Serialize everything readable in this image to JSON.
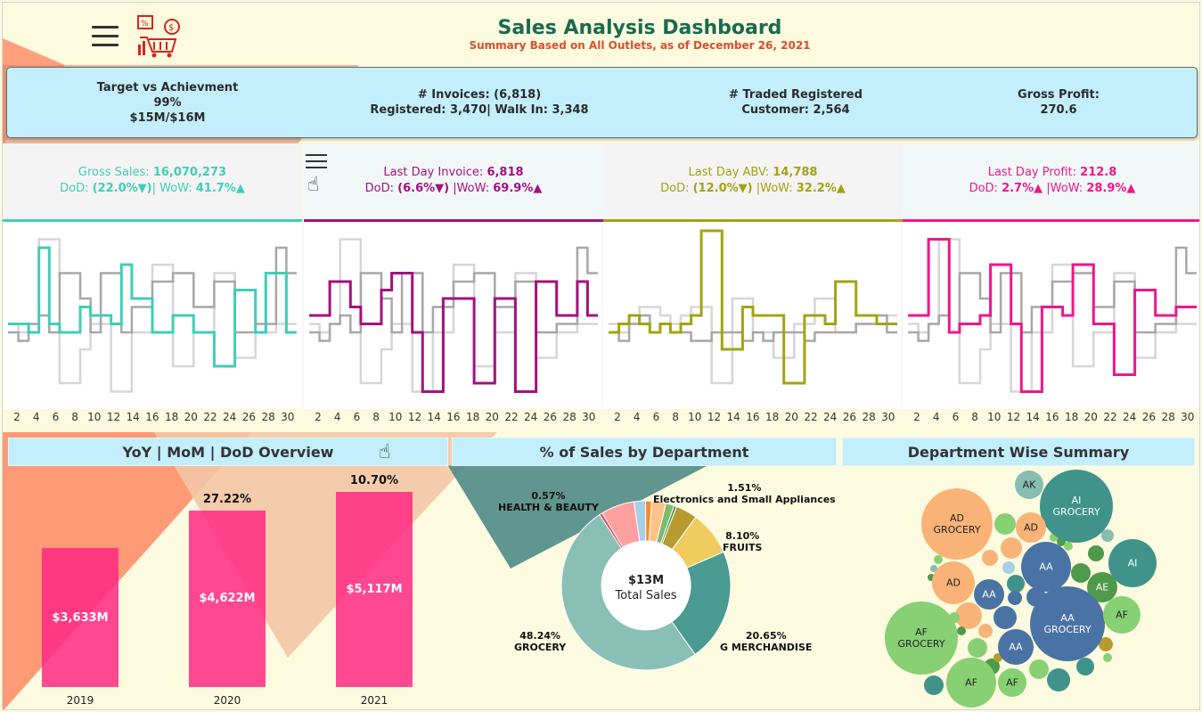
{
  "header": {
    "title": "Sales Analysis Dashboard",
    "subtitle": "Summary Based on All Outlets, as of December 26, 2021",
    "logo_icon": "sales-cart-icon",
    "menu_icon": "hamburger-menu-icon"
  },
  "kpis": [
    {
      "line1": "Target vs Achievment",
      "line2": "99%",
      "line3": "$15M/$16M"
    },
    {
      "line1": "# Invoices: (6,818)",
      "line2": "Registered: 3,470| Walk In: 3,348"
    },
    {
      "line1": "# Traded Registered",
      "line2": "Customer: 2,564"
    },
    {
      "line1": "Gross Profit:",
      "line2": "270.6"
    }
  ],
  "cards": [
    {
      "label": "Gross Sales: ",
      "value": "16,070,273",
      "dod_label": "DoD: ",
      "dod_value": "(22.0%▼)",
      "wow_label": "| WoW:  ",
      "wow_value": "41.7%▲",
      "color": "#3fcdb8"
    },
    {
      "label": "Last Day Invoice: ",
      "value": "6,818",
      "dod_label": "DoD: ",
      "dod_value": "(6.6%▼)",
      "wow_label": " |WoW: ",
      "wow_value": "69.9%▲",
      "color": "#a3117f"
    },
    {
      "label": "Last Day ABV: ",
      "value": "14,788",
      "dod_label": "DoD: ",
      "dod_value": "(12.0%▼)",
      "wow_label": " |WoW: ",
      "wow_value": "32.2%▲",
      "color": "#a3a312"
    },
    {
      "label": "Last Day Profit: ",
      "value": "212.8",
      "dod_label": "DoD: ",
      "dod_value": "2.7%▲",
      "wow_label": " |WoW: ",
      "wow_value": "28.9%▲",
      "color": "#f0168c"
    }
  ],
  "sparkline_axis": [
    "2",
    "4",
    "6",
    "8",
    "10",
    "12",
    "14",
    "16",
    "18",
    "20",
    "22",
    "24",
    "26",
    "28",
    "30"
  ],
  "sections": {
    "yoy": "YoY | MoM | DoD Overview",
    "dept": "% of Sales by Department",
    "summary": "Department Wise Summary"
  },
  "chart_data": [
    {
      "type": "bar",
      "title": "YoY | MoM | DoD Overview",
      "categories": [
        "2019",
        "2020",
        "2021"
      ],
      "values": [
        3633,
        4622,
        5117
      ],
      "value_labels": [
        "$3,633M",
        "$4,622M",
        "$5,117M"
      ],
      "growth_labels": [
        "",
        "27.22%",
        "10.70%"
      ],
      "color": "#ff2b84"
    },
    {
      "type": "pie",
      "title": "% of Sales by Department",
      "center_value": "$13M",
      "center_label": "Total Sales",
      "slices": [
        {
          "name": "G MERCHANDISE",
          "pct": 20.65,
          "label": "20.65%",
          "color": "#4a9b92"
        },
        {
          "name": "GROCERY",
          "pct": 48.24,
          "label": "48.24%",
          "color": "#8abfb6"
        },
        {
          "name": "HEALTH & BEAUTY",
          "pct": 0.57,
          "label": "0.57%",
          "color": "#d9495b"
        },
        {
          "name": "",
          "pct": 6.1,
          "label": "",
          "color": "#ffa0a0"
        },
        {
          "name": "",
          "pct": 2.1,
          "label": "",
          "color": "#a6cfe8"
        },
        {
          "name": "",
          "pct": 1.1,
          "label": "",
          "color": "#f58a2b"
        },
        {
          "name": "",
          "pct": 2.6,
          "label": "",
          "color": "#ffc28a"
        },
        {
          "name": "Electronics and Small Appliances",
          "pct": 1.51,
          "label": "1.51%",
          "color": "#7bbb6a"
        },
        {
          "name": "",
          "pct": 0.5,
          "label": "",
          "color": "#4e9a4b"
        },
        {
          "name": "",
          "pct": 3.9,
          "label": "",
          "color": "#b89a2e"
        },
        {
          "name": "FRUITS",
          "pct": 8.1,
          "label": "8.10%",
          "color": "#efcc5d"
        }
      ]
    },
    {
      "type": "scatter",
      "title": "Department Wise Summary",
      "labels": [
        "AI GROCERY",
        "AD GROCERY",
        "AK",
        "AD",
        "AA",
        "AI",
        "AE",
        "AD",
        "AA",
        "AA GROCERY",
        "AF",
        "AF GROCERY",
        "AA",
        "AF",
        "AF"
      ]
    }
  ],
  "sparklines": [
    {
      "primary": [
        0.55,
        0.55,
        0.6,
        0.1,
        0.55,
        0.6,
        0.6,
        0.45,
        0.5,
        0.5,
        0.55,
        0.2,
        0.4,
        0.4,
        0.6,
        0.6,
        0.5,
        0.5,
        0.6,
        0.6,
        0.8,
        0.8,
        0.35,
        0.35,
        0.6,
        0.25,
        0.25,
        0.6
      ],
      "gray1": [
        0.6,
        0.65,
        0.55,
        0.5,
        0.6,
        0.25,
        0.25,
        0.4,
        0.6,
        0.25,
        0.25,
        0.6,
        0.45,
        0.45,
        0.3,
        0.3,
        0.25,
        0.25,
        0.45,
        0.45,
        0.3,
        0.3,
        0.6,
        0.6,
        0.55,
        0.55,
        0.1,
        0.25
      ],
      "gray2": [
        0.55,
        0.6,
        0.55,
        0.05,
        0.05,
        0.9,
        0.9,
        0.7,
        0.55,
        0.55,
        0.95,
        0.95,
        0.6,
        0.6,
        0.2,
        0.2,
        0.8,
        0.8,
        0.6,
        0.6,
        0.25,
        0.25,
        0.75,
        0.75,
        0.6,
        0.6,
        0.55,
        0.55
      ]
    },
    {
      "primary": [
        0.5,
        0.5,
        0.3,
        0.3,
        0.45,
        0.55,
        0.55,
        0.35,
        0.25,
        0.25,
        0.6,
        0.95,
        0.95,
        0.4,
        0.4,
        0.4,
        0.9,
        0.9,
        0.4,
        0.4,
        0.95,
        0.95,
        0.3,
        0.3,
        0.5,
        0.5,
        0.3,
        0.5
      ],
      "gray1": [
        0.6,
        0.65,
        0.55,
        0.5,
        0.6,
        0.25,
        0.25,
        0.4,
        0.6,
        0.25,
        0.25,
        0.6,
        0.45,
        0.45,
        0.3,
        0.3,
        0.25,
        0.25,
        0.45,
        0.45,
        0.3,
        0.3,
        0.6,
        0.6,
        0.55,
        0.55,
        0.1,
        0.25
      ],
      "gray2": [
        0.55,
        0.6,
        0.55,
        0.05,
        0.05,
        0.9,
        0.9,
        0.7,
        0.55,
        0.55,
        0.95,
        0.95,
        0.6,
        0.6,
        0.2,
        0.2,
        0.8,
        0.8,
        0.6,
        0.6,
        0.25,
        0.25,
        0.75,
        0.75,
        0.6,
        0.6,
        0.55,
        0.55
      ]
    },
    {
      "primary": [
        0.6,
        0.55,
        0.5,
        0.55,
        0.6,
        0.55,
        0.6,
        0.55,
        0.5,
        0.0,
        0.0,
        0.7,
        0.7,
        0.45,
        0.5,
        0.5,
        0.5,
        0.9,
        0.9,
        0.5,
        0.5,
        0.55,
        0.3,
        0.3,
        0.5,
        0.5,
        0.55,
        0.55
      ],
      "gray1": [
        0.6,
        0.65,
        0.55,
        0.5,
        0.6,
        0.55,
        0.6,
        0.6,
        0.65,
        0.65,
        0.6,
        0.6,
        0.6,
        0.65,
        0.6,
        0.65,
        0.6,
        0.6,
        0.6,
        0.65,
        0.6,
        0.6,
        0.6,
        0.6,
        0.55,
        0.55,
        0.5,
        0.6
      ],
      "gray2": [
        0.55,
        0.6,
        0.55,
        0.45,
        0.45,
        0.5,
        0.55,
        0.5,
        0.45,
        0.45,
        0.9,
        0.9,
        0.4,
        0.4,
        0.6,
        0.6,
        0.75,
        0.75,
        0.55,
        0.55,
        0.4,
        0.4,
        0.6,
        0.6,
        0.55,
        0.55,
        0.5,
        0.5
      ]
    },
    {
      "primary": [
        0.5,
        0.5,
        0.05,
        0.05,
        0.6,
        0.55,
        0.55,
        0.5,
        0.2,
        0.2,
        0.55,
        0.95,
        0.95,
        0.45,
        0.45,
        0.5,
        0.2,
        0.2,
        0.55,
        0.55,
        0.85,
        0.85,
        0.35,
        0.35,
        0.5,
        0.5,
        0.45,
        0.45
      ],
      "gray1": [
        0.6,
        0.65,
        0.55,
        0.5,
        0.6,
        0.25,
        0.25,
        0.4,
        0.6,
        0.25,
        0.25,
        0.6,
        0.45,
        0.45,
        0.3,
        0.3,
        0.25,
        0.25,
        0.45,
        0.45,
        0.3,
        0.3,
        0.6,
        0.6,
        0.55,
        0.55,
        0.1,
        0.25
      ],
      "gray2": [
        0.55,
        0.6,
        0.55,
        0.05,
        0.05,
        0.9,
        0.9,
        0.7,
        0.55,
        0.55,
        0.95,
        0.95,
        0.6,
        0.6,
        0.2,
        0.2,
        0.8,
        0.8,
        0.6,
        0.6,
        0.25,
        0.25,
        0.75,
        0.75,
        0.6,
        0.6,
        0.55,
        0.55
      ]
    }
  ],
  "bubbles": [
    {
      "text1": "AI",
      "text2": "GROCERY",
      "r": 41,
      "color": "#3f938a",
      "light": true
    },
    {
      "text1": "AD",
      "text2": "GROCERY",
      "r": 40,
      "color": "#f9b377",
      "light": false
    },
    {
      "text1": "AK",
      "text2": "",
      "r": 16,
      "color": "#88bdb1",
      "light": false
    },
    {
      "text1": "AD",
      "text2": "",
      "r": 17,
      "color": "#f9b377",
      "light": false
    },
    {
      "text1": "AA",
      "text2": "",
      "r": 28,
      "color": "#4a73a5",
      "light": true
    },
    {
      "text1": "AI",
      "text2": "",
      "r": 27,
      "color": "#3f938a",
      "light": true
    },
    {
      "text1": "AE",
      "text2": "",
      "r": 17,
      "color": "#4e9a4b",
      "light": true
    },
    {
      "text1": "AD",
      "text2": "",
      "r": 24,
      "color": "#f9b377",
      "light": false
    },
    {
      "text1": "AA",
      "text2": "",
      "r": 17,
      "color": "#4a73a5",
      "light": true
    },
    {
      "text1": "AA",
      "text2": "GROCERY",
      "r": 42,
      "color": "#4a73a5",
      "light": true
    },
    {
      "text1": "AF",
      "text2": "",
      "r": 21,
      "color": "#87d073",
      "light": false
    },
    {
      "text1": "AF",
      "text2": "GROCERY",
      "r": 41,
      "color": "#87d073",
      "light": false
    },
    {
      "text1": "AA",
      "text2": "",
      "r": 20,
      "color": "#4a73a5",
      "light": true
    },
    {
      "text1": "AF",
      "text2": "",
      "r": 28,
      "color": "#87d073",
      "light": false
    },
    {
      "text1": "AF",
      "text2": "",
      "r": 16,
      "color": "#87d073",
      "light": false
    }
  ]
}
